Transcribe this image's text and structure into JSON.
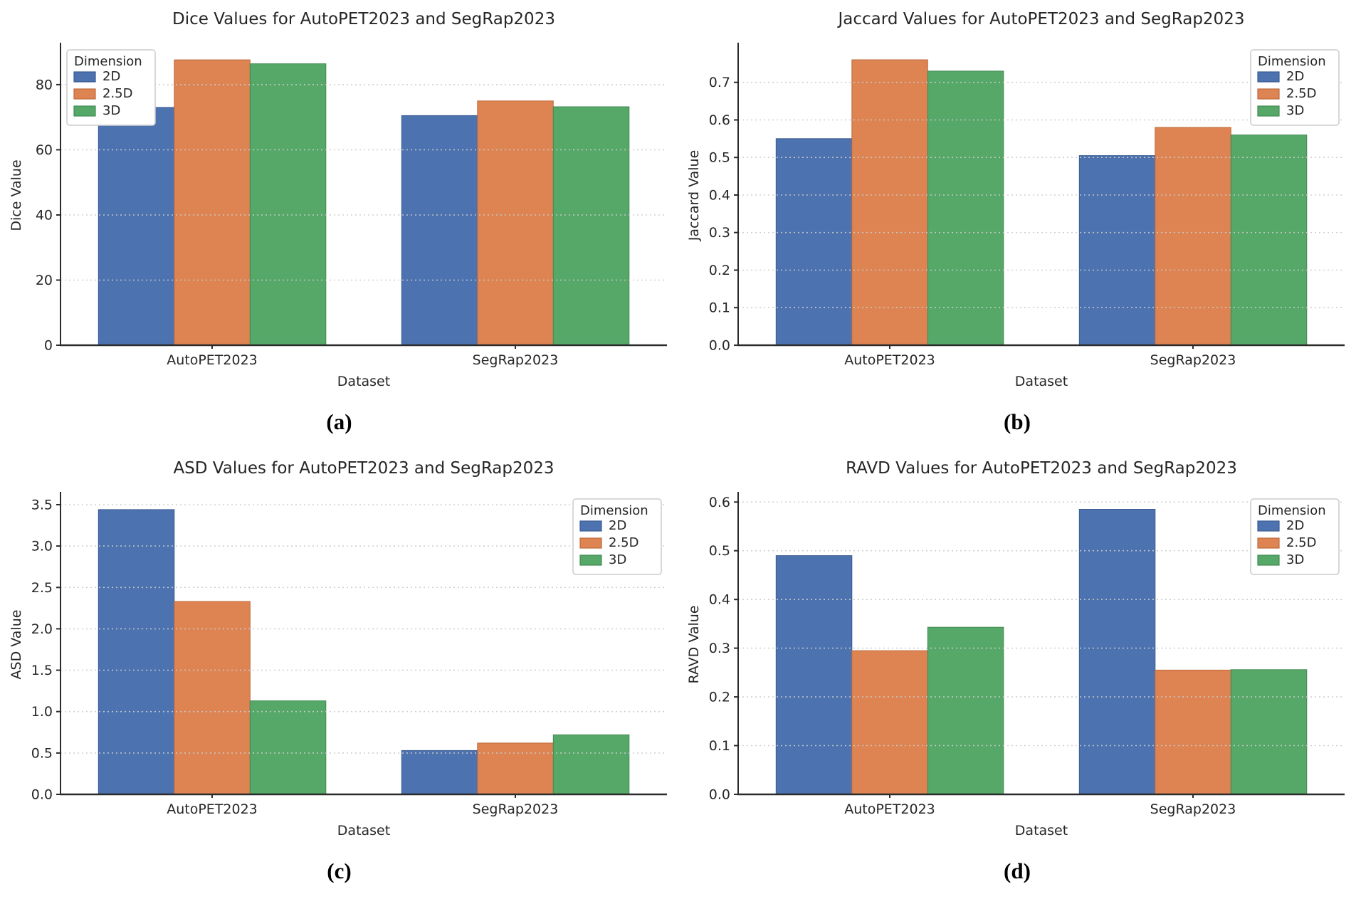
{
  "figure": {
    "background": "#ffffff",
    "legend_title": "Dimension",
    "series_names": [
      "2D",
      "2.5D",
      "3D"
    ],
    "palette": {
      "blue": "#4C72B0",
      "orange": "#DD8452",
      "green": "#55A868"
    }
  },
  "chart_data": [
    {
      "id": "a",
      "type": "bar",
      "title": "Dice Values for AutoPET2023 and SegRap2023",
      "xlabel": "Dataset",
      "ylabel": "Dice Value",
      "caption": "(a)",
      "categories": [
        "AutoPET2023",
        "SegRap2023"
      ],
      "series": [
        {
          "name": "2D",
          "color": "#4C72B0",
          "edge": "#3c5c92",
          "values": [
            73.0,
            70.5
          ]
        },
        {
          "name": "2.5D",
          "color": "#DD8452",
          "edge": "#bf6a3d",
          "values": [
            87.6,
            75.0
          ]
        },
        {
          "name": "3D",
          "color": "#55A868",
          "edge": "#428a53",
          "values": [
            86.4,
            73.2
          ]
        }
      ],
      "legend_title": "Dimension",
      "legend_loc": "upper-left",
      "ylim": [
        0,
        92
      ],
      "yticks": [
        0,
        20,
        40,
        60,
        80
      ],
      "ytick_decimals": 0,
      "grid": true
    },
    {
      "id": "b",
      "type": "bar",
      "title": "Jaccard Values for AutoPET2023 and SegRap2023",
      "xlabel": "Dataset",
      "ylabel": "Jaccard Value",
      "caption": "(b)",
      "categories": [
        "AutoPET2023",
        "SegRap2023"
      ],
      "series": [
        {
          "name": "2D",
          "color": "#4C72B0",
          "edge": "#3c5c92",
          "values": [
            0.55,
            0.505
          ]
        },
        {
          "name": "2.5D",
          "color": "#DD8452",
          "edge": "#bf6a3d",
          "values": [
            0.76,
            0.58
          ]
        },
        {
          "name": "3D",
          "color": "#55A868",
          "edge": "#428a53",
          "values": [
            0.73,
            0.56
          ]
        }
      ],
      "legend_title": "Dimension",
      "legend_loc": "upper-right",
      "ylim": [
        0,
        0.798
      ],
      "yticks": [
        0.0,
        0.1,
        0.2,
        0.3,
        0.4,
        0.5,
        0.6,
        0.7
      ],
      "ytick_decimals": 1,
      "grid": true
    },
    {
      "id": "c",
      "type": "bar",
      "title": "ASD Values for AutoPET2023 and SegRap2023",
      "xlabel": "Dataset",
      "ylabel": "ASD Value",
      "caption": "(c)",
      "categories": [
        "AutoPET2023",
        "SegRap2023"
      ],
      "series": [
        {
          "name": "2D",
          "color": "#4C72B0",
          "edge": "#3c5c92",
          "values": [
            3.44,
            0.53
          ]
        },
        {
          "name": "2.5D",
          "color": "#DD8452",
          "edge": "#bf6a3d",
          "values": [
            2.33,
            0.62
          ]
        },
        {
          "name": "3D",
          "color": "#55A868",
          "edge": "#428a53",
          "values": [
            1.13,
            0.72
          ]
        }
      ],
      "legend_title": "Dimension",
      "legend_loc": "upper-right",
      "ylim": [
        0,
        3.62
      ],
      "yticks": [
        0.0,
        0.5,
        1.0,
        1.5,
        2.0,
        2.5,
        3.0,
        3.5
      ],
      "ytick_decimals": 1,
      "grid": true
    },
    {
      "id": "d",
      "type": "bar",
      "title": "RAVD Values for AutoPET2023 and SegRap2023",
      "xlabel": "Dataset",
      "ylabel": "RAVD Value",
      "caption": "(d)",
      "categories": [
        "AutoPET2023",
        "SegRap2023"
      ],
      "series": [
        {
          "name": "2D",
          "color": "#4C72B0",
          "edge": "#3c5c92",
          "values": [
            0.49,
            0.585
          ]
        },
        {
          "name": "2.5D",
          "color": "#DD8452",
          "edge": "#bf6a3d",
          "values": [
            0.295,
            0.255
          ]
        },
        {
          "name": "3D",
          "color": "#55A868",
          "edge": "#428a53",
          "values": [
            0.343,
            0.256
          ]
        }
      ],
      "legend_title": "Dimension",
      "legend_loc": "upper-right",
      "ylim": [
        0,
        0.615
      ],
      "yticks": [
        0.0,
        0.1,
        0.2,
        0.3,
        0.4,
        0.5,
        0.6
      ],
      "ytick_decimals": 1,
      "grid": true
    }
  ]
}
